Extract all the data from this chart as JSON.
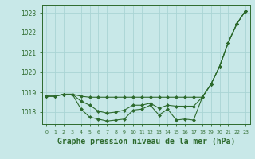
{
  "x": [
    0,
    1,
    2,
    3,
    4,
    5,
    6,
    7,
    8,
    9,
    10,
    11,
    12,
    13,
    14,
    15,
    16,
    17,
    18,
    19,
    20,
    21,
    22,
    23
  ],
  "line1": [
    1018.8,
    1018.8,
    1018.9,
    1018.9,
    1018.8,
    1018.75,
    1018.75,
    1018.75,
    1018.75,
    1018.75,
    1018.75,
    1018.75,
    1018.75,
    1018.75,
    1018.75,
    1018.75,
    1018.75,
    1018.75,
    1018.75,
    1019.4,
    1020.3,
    1021.5,
    1022.45,
    1023.1
  ],
  "line2": [
    1018.8,
    1018.8,
    1018.9,
    1018.9,
    1018.55,
    1018.35,
    1018.05,
    1017.95,
    1018.0,
    1018.1,
    1018.35,
    1018.35,
    1018.45,
    1018.2,
    1018.35,
    1018.3,
    1018.3,
    1018.3,
    1018.75,
    1019.4,
    1020.3,
    1021.5,
    1022.45,
    1023.1
  ],
  "line3": [
    1018.8,
    1018.8,
    1018.9,
    1018.9,
    1018.15,
    1017.75,
    1017.65,
    1017.55,
    1017.6,
    1017.65,
    1018.1,
    1018.15,
    1018.35,
    1017.85,
    1018.15,
    1017.6,
    1017.65,
    1017.6,
    1018.75,
    1019.4,
    1020.3,
    1021.5,
    1022.45,
    1023.1
  ],
  "line_color": "#2d6a2d",
  "bg_color": "#c8e8e8",
  "grid_color": "#b0d8d8",
  "ylim_min": 1017.4,
  "ylim_max": 1023.4,
  "yticks": [
    1018,
    1019,
    1020,
    1021,
    1022,
    1023
  ],
  "xlabel": "Graphe pression niveau de la mer (hPa)",
  "xlabel_fontsize": 7
}
